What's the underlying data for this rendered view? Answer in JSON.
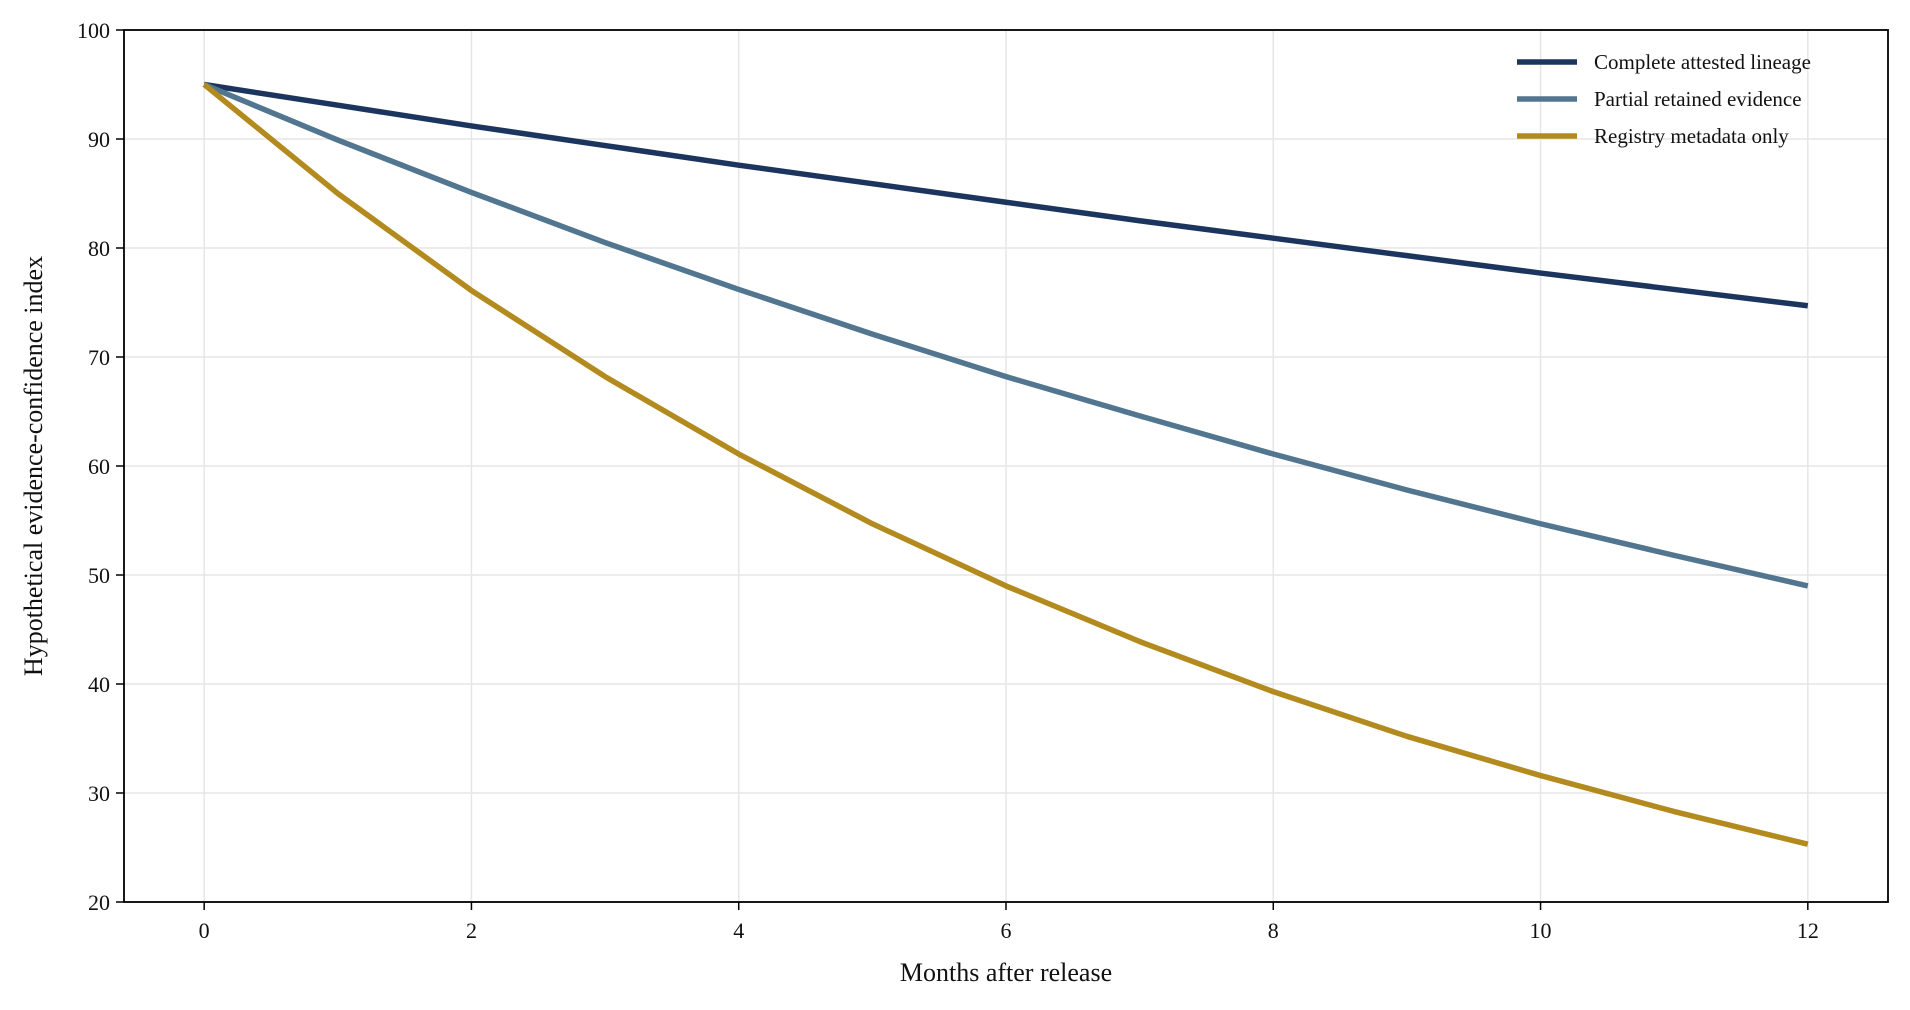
{
  "chart_data": {
    "type": "line",
    "title": "",
    "xlabel": "Months after release",
    "ylabel": "Hypothetical evidence-confidence index",
    "x": [
      0,
      1,
      2,
      3,
      4,
      5,
      6,
      7,
      8,
      9,
      10,
      11,
      12
    ],
    "xlim": [
      -0.6,
      12.6
    ],
    "ylim": [
      20,
      100
    ],
    "xticks": [
      0,
      2,
      4,
      6,
      8,
      10,
      12
    ],
    "yticks": [
      20,
      30,
      40,
      50,
      60,
      70,
      80,
      90,
      100
    ],
    "grid": true,
    "legend_position": "top-right",
    "series": [
      {
        "name": "Complete attested lineage",
        "color": "#1c355e",
        "values": [
          95.0,
          93.1,
          91.2,
          89.4,
          87.6,
          85.9,
          84.2,
          82.5,
          80.9,
          79.3,
          77.7,
          76.2,
          74.7
        ]
      },
      {
        "name": "Partial retained evidence",
        "color": "#52768f",
        "values": [
          95.0,
          89.9,
          85.1,
          80.5,
          76.2,
          72.1,
          68.2,
          64.6,
          61.1,
          57.8,
          54.7,
          51.8,
          49.0
        ]
      },
      {
        "name": "Registry metadata only",
        "color": "#b38a1e",
        "values": [
          95.0,
          85.0,
          76.1,
          68.2,
          61.1,
          54.7,
          49.0,
          43.9,
          39.3,
          35.2,
          31.6,
          28.3,
          25.3
        ]
      }
    ]
  }
}
